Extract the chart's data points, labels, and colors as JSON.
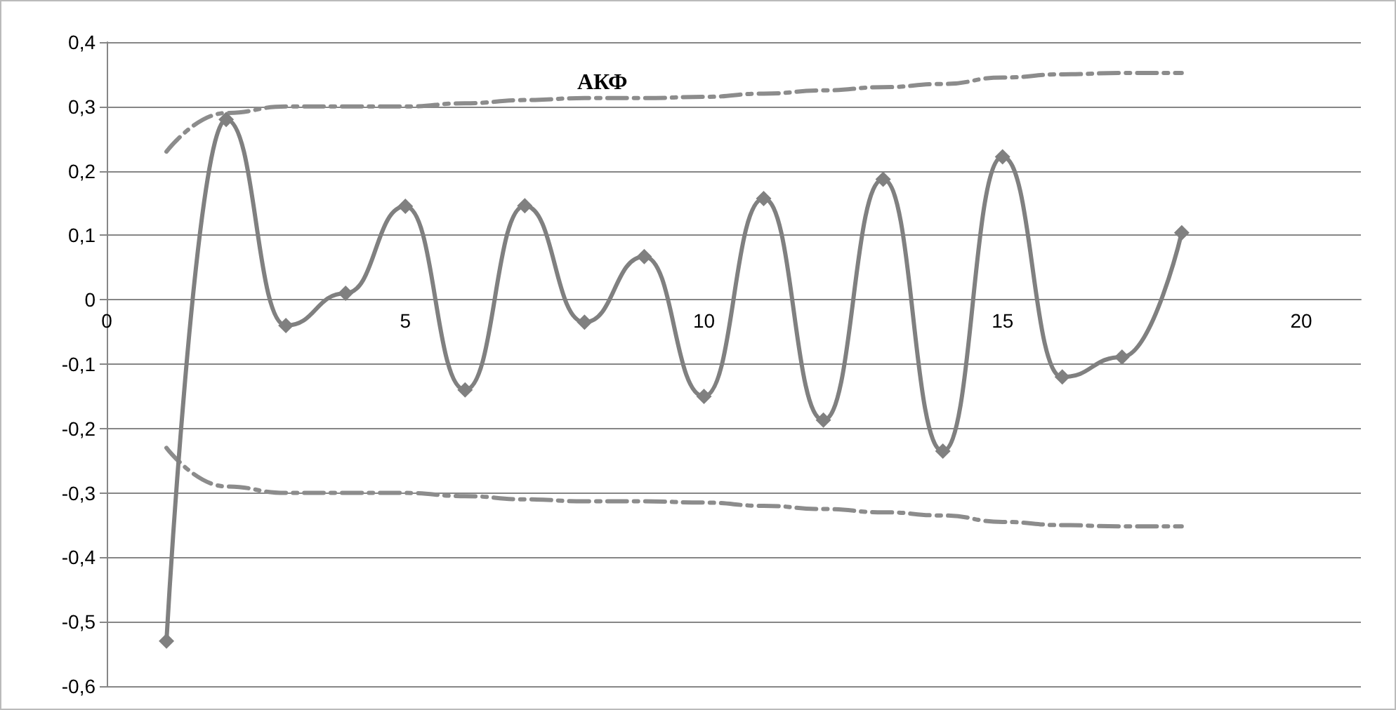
{
  "chart_data": {
    "type": "line",
    "title": "АКФ",
    "x": [
      1,
      2,
      3,
      4,
      5,
      6,
      7,
      8,
      9,
      10,
      11,
      12,
      13,
      14,
      15,
      16,
      17,
      18
    ],
    "series": [
      {
        "color": "#808080",
        "marker": "diamond",
        "line_style": "solid",
        "values": [
          -0.53,
          0.28,
          -0.04,
          0.01,
          0.145,
          -0.14,
          0.146,
          -0.035,
          0.067,
          -0.15,
          0.157,
          -0.187,
          0.187,
          -0.235,
          0.222,
          -0.12,
          -0.089,
          0.104
        ]
      },
      {
        "color": "#8c8c8c",
        "marker": "none",
        "line_style": "dashed",
        "values": [
          0.23,
          0.29,
          0.3,
          0.3,
          0.3,
          0.305,
          0.31,
          0.313,
          0.313,
          0.315,
          0.32,
          0.325,
          0.33,
          0.335,
          0.345,
          0.35,
          0.352,
          0.352
        ]
      },
      {
        "color": "#8c8c8c",
        "marker": "none",
        "line_style": "dashed",
        "values": [
          -0.23,
          -0.29,
          -0.3,
          -0.3,
          -0.3,
          -0.305,
          -0.31,
          -0.313,
          -0.313,
          -0.315,
          -0.32,
          -0.325,
          -0.33,
          -0.335,
          -0.345,
          -0.35,
          -0.352,
          -0.352
        ]
      }
    ],
    "xlim": [
      0,
      21
    ],
    "xticks": [
      0,
      5,
      10,
      15,
      20
    ],
    "ylim": [
      -0.6,
      0.4
    ],
    "yticks": [
      {
        "value": -0.6,
        "label": "-0,6"
      },
      {
        "value": -0.5,
        "label": "-0,5"
      },
      {
        "value": -0.4,
        "label": "-0,4"
      },
      {
        "value": -0.3,
        "label": "-0,3"
      },
      {
        "value": -0.2,
        "label": "-0,2"
      },
      {
        "value": -0.1,
        "label": "-0,1"
      },
      {
        "value": 0,
        "label": "0"
      },
      {
        "value": 0.1,
        "label": "0,1"
      },
      {
        "value": 0.2,
        "label": "0,2"
      },
      {
        "value": 0.3,
        "label": "0,3"
      },
      {
        "value": 0.4,
        "label": "0,4"
      }
    ],
    "grid": "y"
  }
}
